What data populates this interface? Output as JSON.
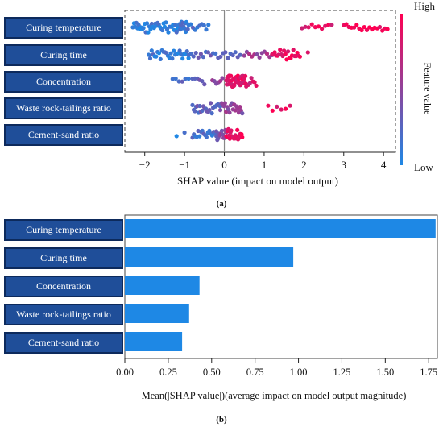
{
  "features": [
    "Curing temperature",
    "Curing time",
    "Concentration",
    "Waste rock-tailings ratio",
    "Cement-sand ratio"
  ],
  "chart_data": [
    {
      "type": "scatter",
      "panel": "(a)",
      "xlabel": "SHAP value (impact on model output)",
      "xlim": [
        -2.5,
        4.3
      ],
      "xticks": [
        -2,
        -1,
        0,
        1,
        2,
        3,
        4
      ],
      "colorbar": {
        "label": "Feature value",
        "high_label": "High",
        "low_label": "Low",
        "low_color": "#1e88e5",
        "high_color": "#ff0052"
      },
      "series": [
        {
          "name": "Curing temperature",
          "clusters": [
            {
              "x0": -2.3,
              "x1": -1.2,
              "n": 38,
              "level": 0.08
            },
            {
              "x0": -1.2,
              "x1": -0.9,
              "n": 18,
              "level": 0.12
            },
            {
              "x0": -0.9,
              "x1": -0.4,
              "n": 10,
              "level": 0.2
            },
            {
              "x0": 1.95,
              "x1": 2.7,
              "n": 10,
              "level": 0.88
            },
            {
              "x0": 3.0,
              "x1": 4.1,
              "n": 18,
              "level": 0.95
            }
          ]
        },
        {
          "name": "Curing time",
          "clusters": [
            {
              "x0": -1.9,
              "x1": -0.9,
              "n": 28,
              "level": 0.12
            },
            {
              "x0": -0.9,
              "x1": 0.4,
              "n": 22,
              "level": 0.25
            },
            {
              "x0": 0.5,
              "x1": 1.2,
              "n": 12,
              "level": 0.55
            },
            {
              "x0": 1.2,
              "x1": 1.9,
              "n": 22,
              "level": 0.92
            },
            {
              "x0": 2.1,
              "x1": 2.2,
              "n": 1,
              "level": 0.9
            }
          ]
        },
        {
          "name": "Concentration",
          "clusters": [
            {
              "x0": -1.3,
              "x1": -0.9,
              "n": 6,
              "level": 0.2
            },
            {
              "x0": -0.8,
              "x1": -0.5,
              "n": 6,
              "level": 0.3
            },
            {
              "x0": -0.3,
              "x1": -0.05,
              "n": 6,
              "level": 0.5
            },
            {
              "x0": 0.05,
              "x1": 0.55,
              "n": 44,
              "level": 0.88
            },
            {
              "x0": 0.6,
              "x1": 0.8,
              "n": 6,
              "level": 0.8
            }
          ]
        },
        {
          "name": "Waste rock-tailings ratio",
          "clusters": [
            {
              "x0": -0.8,
              "x1": -0.1,
              "n": 24,
              "level": 0.3
            },
            {
              "x0": -0.1,
              "x1": 0.45,
              "n": 20,
              "level": 0.5
            },
            {
              "x0": 1.1,
              "x1": 1.65,
              "n": 6,
              "level": 0.9
            }
          ]
        },
        {
          "name": "Cement-sand ratio",
          "clusters": [
            {
              "x0": -1.2,
              "x1": -1.0,
              "n": 2,
              "level": 0.1
            },
            {
              "x0": -0.8,
              "x1": -0.2,
              "n": 18,
              "level": 0.2
            },
            {
              "x0": -0.2,
              "x1": 0.05,
              "n": 12,
              "level": 0.45
            },
            {
              "x0": 0.05,
              "x1": 0.45,
              "n": 24,
              "level": 0.9
            }
          ]
        }
      ]
    },
    {
      "type": "bar",
      "panel": "(b)",
      "orientation": "horizontal",
      "categories": [
        "Curing temperature",
        "Curing time",
        "Concentration",
        "Waste rock-tailings ratio",
        "Cement-sand ratio"
      ],
      "values": [
        1.79,
        0.97,
        0.43,
        0.37,
        0.33
      ],
      "xlabel": "Mean(|SHAP value|)(average impact on model output magnitude)",
      "xlim": [
        0,
        1.8
      ],
      "xticks": [
        "0.00",
        "0.25",
        "0.50",
        "0.75",
        "1.00",
        "1.25",
        "1.50",
        "1.75"
      ],
      "bar_color": "#1e88e5"
    }
  ]
}
